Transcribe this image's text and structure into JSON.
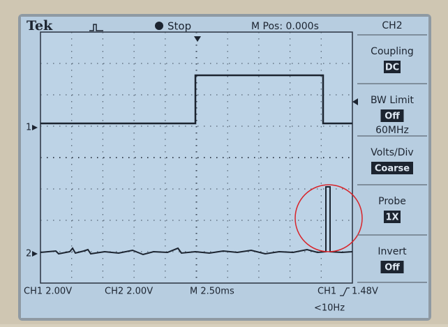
{
  "header": {
    "brand": "Tek",
    "state": "Stop",
    "position": "M Pos: 0.000s"
  },
  "menu": {
    "title": "CH2",
    "items": [
      {
        "label": "Coupling",
        "value": "DC"
      },
      {
        "label": "BW Limit",
        "value": "Off",
        "note": "60MHz"
      },
      {
        "label": "Volts/Div",
        "value": "Coarse"
      },
      {
        "label": "Probe",
        "value": "1X"
      },
      {
        "label": "Invert",
        "value": "Off"
      }
    ]
  },
  "markers": {
    "ch1": "1",
    "ch2": "2"
  },
  "status": {
    "ch1_scale": "CH1 2.00V",
    "ch2_scale": "CH2 2.00V",
    "timebase": "M 2.50ms",
    "trigger_source": "CH1",
    "trigger_level": "1.48V",
    "frequency": "<10Hz"
  }
}
